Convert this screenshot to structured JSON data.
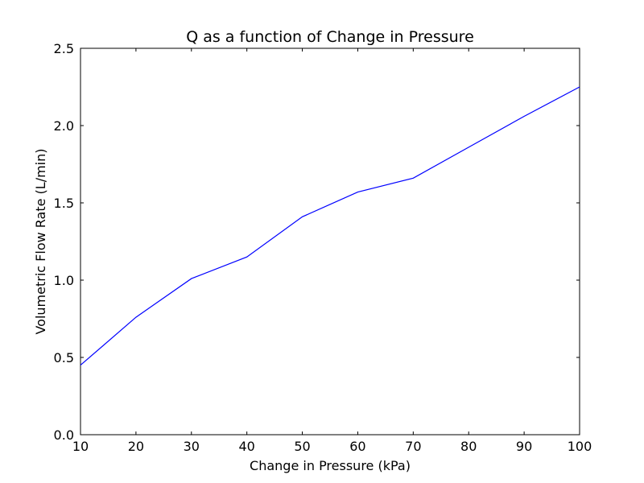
{
  "chart_data": {
    "type": "line",
    "title": "Q as a function of Change in Pressure",
    "xlabel": "Change in Pressure (kPa)",
    "ylabel": "Volumetric Flow Rate (L/min)",
    "xlim": [
      10,
      100
    ],
    "ylim": [
      0,
      2.5
    ],
    "x_ticks": [
      10,
      20,
      30,
      40,
      50,
      60,
      70,
      80,
      90,
      100
    ],
    "x_tick_labels": [
      "10",
      "20",
      "30",
      "40",
      "50",
      "60",
      "70",
      "80",
      "90",
      "100"
    ],
    "y_ticks": [
      0,
      0.5,
      1.0,
      1.5,
      2.0,
      2.5
    ],
    "y_tick_labels": [
      "0.0",
      "0.5",
      "1.0",
      "1.5",
      "2.0",
      "2.5"
    ],
    "grid": false,
    "legend": "none",
    "series": [
      {
        "color": "#0000ff",
        "x": [
          10,
          20,
          30,
          40,
          50,
          60,
          70,
          80,
          90,
          100
        ],
        "y": [
          0.45,
          0.76,
          1.01,
          1.15,
          1.41,
          1.57,
          1.66,
          1.86,
          2.06,
          2.25
        ]
      }
    ]
  }
}
